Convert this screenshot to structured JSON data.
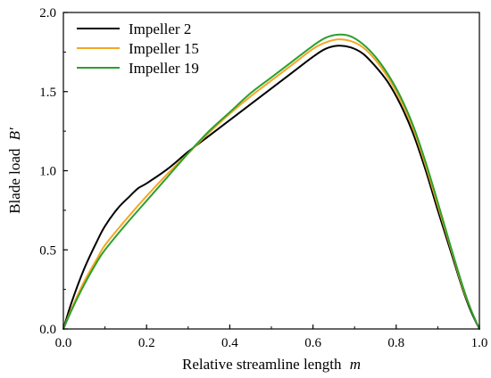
{
  "chart_data": {
    "type": "line",
    "xlabel": "Relative streamline length",
    "xlabel_symbol": "m",
    "ylabel": "Blade load",
    "ylabel_symbol": "B′",
    "xlim": [
      0.0,
      1.0
    ],
    "ylim": [
      0.0,
      2.0
    ],
    "x_ticks": [
      0.0,
      0.2,
      0.4,
      0.6,
      0.8,
      1.0
    ],
    "x_tick_labels": [
      "0.0",
      "0.2",
      "0.4",
      "0.6",
      "0.8",
      "1.0"
    ],
    "y_ticks": [
      0.0,
      0.5,
      1.0,
      1.5,
      2.0
    ],
    "y_tick_labels": [
      "0.0",
      "0.5",
      "1.0",
      "1.5",
      "2.0"
    ],
    "grid": false,
    "legend_position": "top-left",
    "series": [
      {
        "name": "Impeller 2",
        "color": "#000000",
        "x": [
          0.0,
          0.02,
          0.05,
          0.08,
          0.1,
          0.13,
          0.16,
          0.18,
          0.2,
          0.25,
          0.3,
          0.35,
          0.4,
          0.45,
          0.5,
          0.55,
          0.6,
          0.63,
          0.66,
          0.69,
          0.72,
          0.75,
          0.78,
          0.81,
          0.84,
          0.87,
          0.9,
          0.93,
          0.96,
          0.98,
          1.0
        ],
        "y": [
          0.0,
          0.17,
          0.38,
          0.55,
          0.65,
          0.76,
          0.84,
          0.89,
          0.92,
          1.01,
          1.12,
          1.22,
          1.32,
          1.42,
          1.52,
          1.62,
          1.72,
          1.77,
          1.79,
          1.78,
          1.74,
          1.66,
          1.56,
          1.42,
          1.24,
          1.01,
          0.75,
          0.5,
          0.25,
          0.11,
          0.0
        ]
      },
      {
        "name": "Impeller 15",
        "color": "#f5a623",
        "x": [
          0.0,
          0.02,
          0.05,
          0.08,
          0.1,
          0.15,
          0.2,
          0.25,
          0.3,
          0.35,
          0.4,
          0.45,
          0.5,
          0.55,
          0.6,
          0.63,
          0.66,
          0.69,
          0.72,
          0.75,
          0.78,
          0.81,
          0.84,
          0.87,
          0.9,
          0.93,
          0.96,
          0.98,
          1.0
        ],
        "y": [
          0.0,
          0.13,
          0.3,
          0.44,
          0.53,
          0.69,
          0.84,
          0.98,
          1.11,
          1.24,
          1.36,
          1.47,
          1.57,
          1.67,
          1.77,
          1.81,
          1.83,
          1.82,
          1.78,
          1.7,
          1.59,
          1.45,
          1.27,
          1.04,
          0.78,
          0.52,
          0.26,
          0.12,
          0.0
        ]
      },
      {
        "name": "Impeller 19",
        "color": "#2ca02c",
        "x": [
          0.0,
          0.02,
          0.05,
          0.08,
          0.1,
          0.15,
          0.2,
          0.25,
          0.3,
          0.35,
          0.4,
          0.45,
          0.5,
          0.55,
          0.6,
          0.63,
          0.66,
          0.69,
          0.72,
          0.75,
          0.78,
          0.81,
          0.84,
          0.87,
          0.9,
          0.93,
          0.96,
          0.98,
          1.0
        ],
        "y": [
          0.0,
          0.12,
          0.28,
          0.42,
          0.5,
          0.66,
          0.81,
          0.96,
          1.11,
          1.25,
          1.37,
          1.49,
          1.59,
          1.69,
          1.79,
          1.84,
          1.86,
          1.85,
          1.8,
          1.72,
          1.61,
          1.47,
          1.29,
          1.06,
          0.8,
          0.53,
          0.27,
          0.12,
          0.0
        ]
      }
    ]
  }
}
